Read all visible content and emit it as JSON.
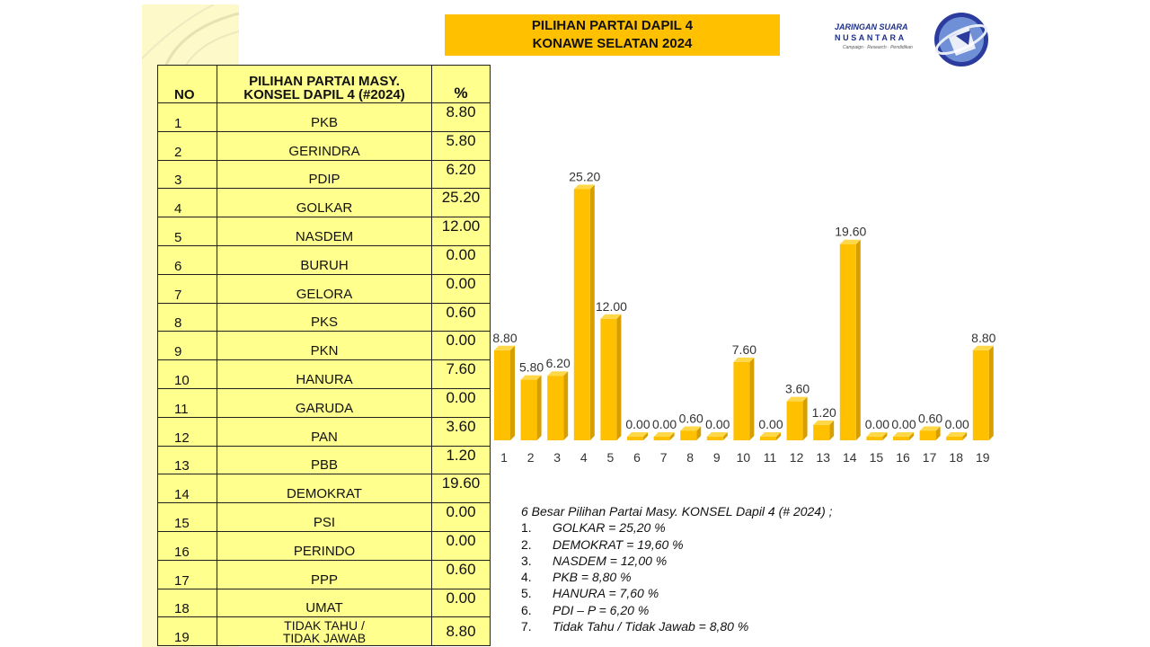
{
  "title": {
    "line1": "PILIHAN PARTAI  DAPIL 4",
    "line2": "KONAWE SELATAN 2024"
  },
  "logo": {
    "line1": "JARINGAN SUARA",
    "line2": "NUSANTARA",
    "tagline": "Campaign · Research · Pendidikan",
    "icon": "globe-logo-icon"
  },
  "table": {
    "header": {
      "no": "NO",
      "name_line1": "PILIHAN PARTAI MASY.",
      "name_line2": "KONSEL  DAPIL 4 (#2024)",
      "pct": "%"
    },
    "rows": [
      {
        "no": "1",
        "name": "PKB",
        "pct": "8.80"
      },
      {
        "no": "2",
        "name": "GERINDRA",
        "pct": "5.80"
      },
      {
        "no": "3",
        "name": "PDIP",
        "pct": "6.20"
      },
      {
        "no": "4",
        "name": "GOLKAR",
        "pct": "25.20"
      },
      {
        "no": "5",
        "name": "NASDEM",
        "pct": "12.00"
      },
      {
        "no": "6",
        "name": "BURUH",
        "pct": "0.00"
      },
      {
        "no": "7",
        "name": "GELORA",
        "pct": "0.00"
      },
      {
        "no": "8",
        "name": "PKS",
        "pct": "0.60"
      },
      {
        "no": "9",
        "name": "PKN",
        "pct": "0.00"
      },
      {
        "no": "10",
        "name": "HANURA",
        "pct": "7.60"
      },
      {
        "no": "11",
        "name": "GARUDA",
        "pct": "0.00"
      },
      {
        "no": "12",
        "name": "PAN",
        "pct": "3.60"
      },
      {
        "no": "13",
        "name": "PBB",
        "pct": "1.20"
      },
      {
        "no": "14",
        "name": "DEMOKRAT",
        "pct": "19.60"
      },
      {
        "no": "15",
        "name": "PSI",
        "pct": "0.00"
      },
      {
        "no": "16",
        "name": "PERINDO",
        "pct": "0.00"
      },
      {
        "no": "17",
        "name": "PPP",
        "pct": "0.60"
      },
      {
        "no": "18",
        "name": "UMAT",
        "pct": "0.00"
      },
      {
        "no": "19",
        "name_line1": "TIDAK TAHU /",
        "name_line2": "TIDAK JAWAB",
        "pct": "8.80"
      }
    ]
  },
  "chart_data": {
    "type": "bar",
    "categories": [
      "1",
      "2",
      "3",
      "4",
      "5",
      "6",
      "7",
      "8",
      "9",
      "10",
      "11",
      "12",
      "13",
      "14",
      "15",
      "16",
      "17",
      "18",
      "19"
    ],
    "values": [
      8.8,
      5.8,
      6.2,
      25.2,
      12.0,
      0.0,
      0.0,
      0.6,
      0.0,
      7.6,
      0.0,
      3.6,
      1.2,
      19.6,
      0.0,
      0.0,
      0.6,
      0.0,
      8.8
    ],
    "labels": [
      "8.80",
      "5.80",
      "6.20",
      "25.20",
      "12.00",
      "0.00",
      "0.00",
      "0.60",
      "0.00",
      "7.60",
      "0.00",
      "3.60",
      "1.20",
      "19.60",
      "0.00",
      "0.00",
      "0.60",
      "0.00",
      "8.80"
    ],
    "ylim": [
      0,
      30
    ],
    "grid": false,
    "bar_color": "#ffc000",
    "bar_side_color": "#d79e00"
  },
  "summary": {
    "heading": "6 Besar Pilihan Partai Masy. KONSEL Dapil 4 (# 2024) ;",
    "items": [
      {
        "num": "1.",
        "text": "GOLKAR = 25,20 %"
      },
      {
        "num": "2.",
        "text": "DEMOKRAT = 19,60 %"
      },
      {
        "num": "3.",
        "text": "NASDEM = 12,00 %"
      },
      {
        "num": "4.",
        "text": "PKB = 8,80 %"
      },
      {
        "num": "5.",
        "text": "HANURA = 7,60 %"
      },
      {
        "num": "6.",
        "text": "PDI – P = 6,20 %"
      },
      {
        "num": "7.",
        "text": "Tidak Tahu / Tidak Jawab = 8,80 %"
      }
    ]
  }
}
